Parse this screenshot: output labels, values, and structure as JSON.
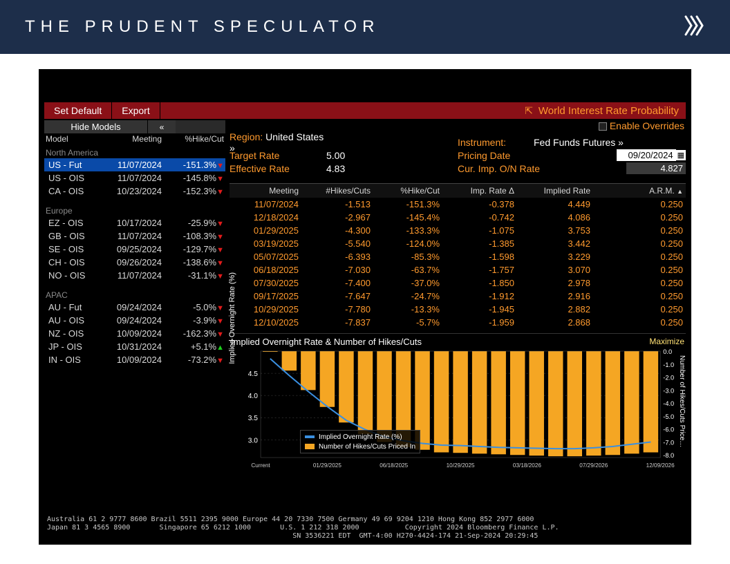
{
  "page": {
    "title": "THE PRUDENT SPECULATOR"
  },
  "redbar": {
    "set_default": "Set Default",
    "export": "Export",
    "title": "World Interest Rate Probability"
  },
  "sidebar": {
    "hide_models": "Hide Models",
    "collapse": "«",
    "hdr_model": "Model",
    "hdr_meeting": "Meeting",
    "hdr_pct": "%Hike/Cut",
    "regions": [
      {
        "name": "North America",
        "rows": [
          {
            "model": "US - Fut",
            "meeting": "11/07/2024",
            "pct": "-151.3%",
            "dir": "dn",
            "selected": true
          },
          {
            "model": "US - OIS",
            "meeting": "11/07/2024",
            "pct": "-145.8%",
            "dir": "dn"
          },
          {
            "model": "CA - OIS",
            "meeting": "10/23/2024",
            "pct": "-152.3%",
            "dir": "dn"
          }
        ]
      },
      {
        "name": "Europe",
        "rows": [
          {
            "model": "EZ - OIS",
            "meeting": "10/17/2024",
            "pct": "-25.9%",
            "dir": "dn"
          },
          {
            "model": "GB - OIS",
            "meeting": "11/07/2024",
            "pct": "-108.3%",
            "dir": "dn"
          },
          {
            "model": "SE - OIS",
            "meeting": "09/25/2024",
            "pct": "-129.7%",
            "dir": "dn"
          },
          {
            "model": "CH - OIS",
            "meeting": "09/26/2024",
            "pct": "-138.6%",
            "dir": "dn"
          },
          {
            "model": "NO - OIS",
            "meeting": "11/07/2024",
            "pct": "-31.1%",
            "dir": "dn"
          }
        ]
      },
      {
        "name": "APAC",
        "rows": [
          {
            "model": "AU - Fut",
            "meeting": "09/24/2024",
            "pct": "-5.0%",
            "dir": "dn"
          },
          {
            "model": "AU - OIS",
            "meeting": "09/24/2024",
            "pct": "-3.9%",
            "dir": "dn"
          },
          {
            "model": "NZ - OIS",
            "meeting": "10/09/2024",
            "pct": "-162.3%",
            "dir": "dn"
          },
          {
            "model": "JP - OIS",
            "meeting": "10/31/2024",
            "pct": "+5.1%",
            "dir": "up"
          },
          {
            "model": "IN - OIS",
            "meeting": "10/09/2024",
            "pct": "-73.2%",
            "dir": "dn"
          }
        ]
      }
    ]
  },
  "main": {
    "enable_overrides": "Enable Overrides",
    "region_lbl": "Region:",
    "region_val": "United States »",
    "target_lbl": "Target Rate",
    "target_val": "5.00",
    "eff_lbl": "Effective Rate",
    "eff_val": "4.83",
    "instrument_lbl": "Instrument:",
    "instrument_val": "Fed Funds Futures »",
    "pricing_lbl": "Pricing Date",
    "pricing_val": "09/20/2024",
    "cur_lbl": "Cur. Imp. O/N Rate",
    "cur_val": "4.827"
  },
  "table": {
    "hdr": {
      "meeting": "Meeting",
      "hikes": "#Hikes/Cuts",
      "pct": "%Hike/Cut",
      "delta": "Imp. Rate Δ",
      "impl": "Implied Rate",
      "arm": "A.R.M."
    },
    "rows": [
      {
        "meeting": "11/07/2024",
        "hikes": "-1.513",
        "pct": "-151.3%",
        "delta": "-0.378",
        "impl": "4.449",
        "arm": "0.250"
      },
      {
        "meeting": "12/18/2024",
        "hikes": "-2.967",
        "pct": "-145.4%",
        "delta": "-0.742",
        "impl": "4.086",
        "arm": "0.250"
      },
      {
        "meeting": "01/29/2025",
        "hikes": "-4.300",
        "pct": "-133.3%",
        "delta": "-1.075",
        "impl": "3.753",
        "arm": "0.250"
      },
      {
        "meeting": "03/19/2025",
        "hikes": "-5.540",
        "pct": "-124.0%",
        "delta": "-1.385",
        "impl": "3.442",
        "arm": "0.250"
      },
      {
        "meeting": "05/07/2025",
        "hikes": "-6.393",
        "pct": "-85.3%",
        "delta": "-1.598",
        "impl": "3.229",
        "arm": "0.250"
      },
      {
        "meeting": "06/18/2025",
        "hikes": "-7.030",
        "pct": "-63.7%",
        "delta": "-1.757",
        "impl": "3.070",
        "arm": "0.250"
      },
      {
        "meeting": "07/30/2025",
        "hikes": "-7.400",
        "pct": "-37.0%",
        "delta": "-1.850",
        "impl": "2.978",
        "arm": "0.250"
      },
      {
        "meeting": "09/17/2025",
        "hikes": "-7.647",
        "pct": "-24.7%",
        "delta": "-1.912",
        "impl": "2.916",
        "arm": "0.250"
      },
      {
        "meeting": "10/29/2025",
        "hikes": "-7.780",
        "pct": "-13.3%",
        "delta": "-1.945",
        "impl": "2.882",
        "arm": "0.250"
      },
      {
        "meeting": "12/10/2025",
        "hikes": "-7.837",
        "pct": "-5.7%",
        "delta": "-1.959",
        "impl": "2.868",
        "arm": "0.250"
      }
    ]
  },
  "chart": {
    "title": "Implied Overnight Rate & Number of Hikes/Cuts",
    "maximize": "Maximize",
    "left_axis_label": "Implied Overnight Rate (%)",
    "right_axis_label": "Number of Hikes/Cuts Price…",
    "left_ticks": [
      3.0,
      3.5,
      4.0,
      4.5
    ],
    "left_min": 2.6,
    "left_max": 5.0,
    "right_ticks": [
      "0.0",
      "-1.0",
      "-2.0",
      "-3.0",
      "-4.0",
      "-5.0",
      "-6.0",
      "-7.0",
      "-8.0"
    ],
    "x_labels": [
      "Current",
      "01/29/2025",
      "06/18/2025",
      "10/29/2025",
      "03/18/2026",
      "07/29/2026",
      "12/09/2026"
    ],
    "bar_color": "#f5a623",
    "line_color": "#3a8fe0",
    "grid_color": "#4a4a4a",
    "bg_color": "#000000",
    "bars_top": [
      0,
      -1.5,
      -3.0,
      -4.3,
      -5.5,
      -6.4,
      -7.0,
      -7.4,
      -7.6,
      -7.8,
      -7.84,
      -7.9,
      -7.95,
      -8.0,
      -8.05,
      -8.1,
      -8.1,
      -8.05,
      -8.0,
      -7.9,
      -7.8
    ],
    "bar_min": -8.2,
    "bar_max": 0,
    "line_vals": [
      4.83,
      4.45,
      4.09,
      3.75,
      3.44,
      3.23,
      3.07,
      2.98,
      2.92,
      2.88,
      2.87,
      2.85,
      2.83,
      2.82,
      2.81,
      2.8,
      2.8,
      2.82,
      2.85,
      2.9,
      2.95
    ],
    "legend": {
      "l1": "Implied Overnight Rate (%)",
      "l2": "Number of Hikes/Cuts Priced In"
    }
  },
  "footer": {
    "line1": "Australia 61 2 9777 8600 Brazil 5511 2395 9000 Europe 44 20 7330 7500 Germany 49 69 9204 1210 Hong Kong 852 2977 6000",
    "line2": "Japan 81 3 4565 8900       Singapore 65 6212 1000       U.S. 1 212 318 2000           Copyright 2024 Bloomberg Finance L.P.",
    "line3": "                                                           SN 3536221 EDT  GMT-4:00 H270-4424-174 21-Sep-2024 20:29:45"
  }
}
